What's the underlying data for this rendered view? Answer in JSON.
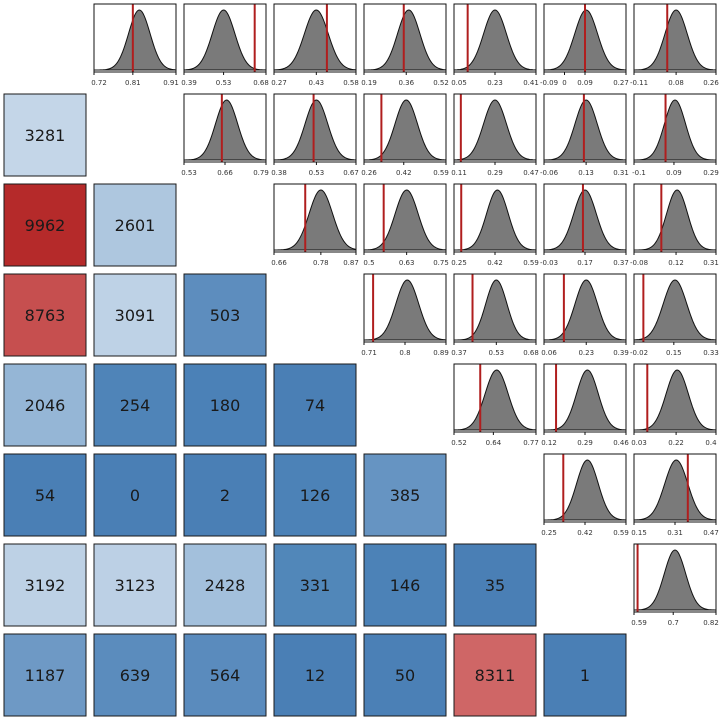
{
  "chart_data": {
    "type": "heatmap",
    "layout": "correlation-matrix: lower triangle = count tiles, upper triangle = sampling-distribution panels with observed value marker",
    "colors": {
      "low": "#4a7fb5",
      "mid": "#c4d6e8",
      "high": "#b52a2a",
      "density_fill": "#7a7a7a",
      "observed_line": "#b01e1e",
      "tile_border": "#1a1a1a"
    },
    "color_scale_note": "tile colour varies from blue (small counts) through light blue to red (large counts)",
    "lower_triangle": [
      {
        "row": 1,
        "values": [
          3281
        ]
      },
      {
        "row": 2,
        "values": [
          9962,
          2601
        ]
      },
      {
        "row": 3,
        "values": [
          8763,
          3091,
          503
        ]
      },
      {
        "row": 4,
        "values": [
          2046,
          254,
          180,
          74
        ]
      },
      {
        "row": 5,
        "values": [
          54,
          0,
          2,
          126,
          385
        ]
      },
      {
        "row": 6,
        "values": [
          3192,
          3123,
          2428,
          331,
          146,
          35
        ]
      },
      {
        "row": 7,
        "values": [
          1187,
          639,
          564,
          12,
          50,
          8311,
          1
        ]
      }
    ],
    "tile_colors": [
      [
        "#c4d6e8"
      ],
      [
        "#b52a2a",
        "#aec7df"
      ],
      [
        "#c64f4f",
        "#bed2e6",
        "#5d8dbe"
      ],
      [
        "#95b6d6",
        "#4f84b8",
        "#4b81b7",
        "#4a7fb5"
      ],
      [
        "#4a7fb5",
        "#4a7fb5",
        "#4a7fb5",
        "#4c82b7",
        "#6694c2"
      ],
      [
        "#bdd1e5",
        "#bcd0e5",
        "#a3c0dc",
        "#5187b9",
        "#4c82b7",
        "#4a7fb5"
      ],
      [
        "#6e99c5",
        "#5b8cbd",
        "#5a8bbd",
        "#4a7fb5",
        "#4b80b6",
        "#cf6666",
        "#4a7fb5"
      ]
    ],
    "density_panels": [
      [
        {
          "row": 0,
          "col": 1,
          "ticks": [
            "0.72",
            "0.81",
            "0.91"
          ],
          "mean": 0.825,
          "sd": 0.025,
          "xmin": 0.72,
          "xmax": 0.91,
          "observed": 0.81
        },
        {
          "row": 0,
          "col": 2,
          "ticks": [
            "0.39",
            "0.53",
            "0.68"
          ],
          "mean": 0.53,
          "sd": 0.04,
          "xmin": 0.39,
          "xmax": 0.68,
          "observed": 0.64
        },
        {
          "row": 0,
          "col": 3,
          "ticks": [
            "0.27",
            "0.43",
            "0.58"
          ],
          "mean": 0.43,
          "sd": 0.045,
          "xmin": 0.27,
          "xmax": 0.58,
          "observed": 0.47
        },
        {
          "row": 0,
          "col": 4,
          "ticks": [
            "0.19",
            "0.36",
            "0.52"
          ],
          "mean": 0.37,
          "sd": 0.045,
          "xmin": 0.19,
          "xmax": 0.52,
          "observed": 0.35
        },
        {
          "row": 0,
          "col": 5,
          "ticks": [
            "0.05",
            "0.23",
            "0.41"
          ],
          "mean": 0.23,
          "sd": 0.05,
          "xmin": 0.05,
          "xmax": 0.41,
          "observed": 0.11
        },
        {
          "row": 0,
          "col": 6,
          "ticks": [
            "-0.09",
            "0",
            "0.09",
            "0.27"
          ],
          "mean": 0.095,
          "sd": 0.05,
          "xmin": -0.09,
          "xmax": 0.27,
          "observed": 0.09
        },
        {
          "row": 0,
          "col": 7,
          "ticks": [
            "-0.11",
            "0.08",
            "0.26"
          ],
          "mean": 0.08,
          "sd": 0.05,
          "xmin": -0.11,
          "xmax": 0.26,
          "observed": 0.04
        }
      ],
      [
        {
          "row": 1,
          "col": 2,
          "ticks": [
            "0.53",
            "0.66",
            "0.79"
          ],
          "mean": 0.665,
          "sd": 0.035,
          "xmin": 0.53,
          "xmax": 0.79,
          "observed": 0.65
        },
        {
          "row": 1,
          "col": 3,
          "ticks": [
            "0.38",
            "0.53",
            "0.67"
          ],
          "mean": 0.53,
          "sd": 0.04,
          "xmin": 0.38,
          "xmax": 0.67,
          "observed": 0.52
        },
        {
          "row": 1,
          "col": 4,
          "ticks": [
            "0.26",
            "0.42",
            "0.59"
          ],
          "mean": 0.43,
          "sd": 0.045,
          "xmin": 0.26,
          "xmax": 0.59,
          "observed": 0.33
        },
        {
          "row": 1,
          "col": 5,
          "ticks": [
            "0.11",
            "0.29",
            "0.47"
          ],
          "mean": 0.29,
          "sd": 0.05,
          "xmin": 0.11,
          "xmax": 0.47,
          "observed": 0.14
        },
        {
          "row": 1,
          "col": 6,
          "ticks": [
            "-0.06",
            "0.13",
            "0.31"
          ],
          "mean": 0.13,
          "sd": 0.05,
          "xmin": -0.06,
          "xmax": 0.31,
          "observed": 0.12
        },
        {
          "row": 1,
          "col": 7,
          "ticks": [
            "-0.1",
            "0.09",
            "0.29"
          ],
          "mean": 0.095,
          "sd": 0.05,
          "xmin": -0.1,
          "xmax": 0.29,
          "observed": 0.05
        }
      ],
      [
        {
          "row": 2,
          "col": 3,
          "ticks": [
            "0.66",
            "0.78",
            "0.87"
          ],
          "mean": 0.78,
          "sd": 0.03,
          "xmin": 0.66,
          "xmax": 0.87,
          "observed": 0.74
        },
        {
          "row": 2,
          "col": 4,
          "ticks": [
            "0.5",
            "0.63",
            "0.75"
          ],
          "mean": 0.63,
          "sd": 0.035,
          "xmin": 0.5,
          "xmax": 0.75,
          "observed": 0.56
        },
        {
          "row": 2,
          "col": 5,
          "ticks": [
            "0.25",
            "0.42",
            "0.59"
          ],
          "mean": 0.43,
          "sd": 0.045,
          "xmin": 0.25,
          "xmax": 0.59,
          "observed": 0.28
        },
        {
          "row": 2,
          "col": 6,
          "ticks": [
            "-0.03",
            "0.17",
            "0.37"
          ],
          "mean": 0.17,
          "sd": 0.055,
          "xmin": -0.03,
          "xmax": 0.37,
          "observed": 0.16
        },
        {
          "row": 2,
          "col": 7,
          "ticks": [
            "-0.08",
            "0.12",
            "0.31"
          ],
          "mean": 0.125,
          "sd": 0.05,
          "xmin": -0.08,
          "xmax": 0.31,
          "observed": 0.05
        }
      ],
      [
        {
          "row": 3,
          "col": 4,
          "ticks": [
            "0.71",
            "0.8",
            "0.89"
          ],
          "mean": 0.805,
          "sd": 0.025,
          "xmin": 0.71,
          "xmax": 0.89,
          "observed": 0.73
        },
        {
          "row": 3,
          "col": 5,
          "ticks": [
            "0.37",
            "0.53",
            "0.68"
          ],
          "mean": 0.53,
          "sd": 0.04,
          "xmin": 0.37,
          "xmax": 0.68,
          "observed": 0.44
        },
        {
          "row": 3,
          "col": 6,
          "ticks": [
            "0.06",
            "0.23",
            "0.39"
          ],
          "mean": 0.23,
          "sd": 0.045,
          "xmin": 0.06,
          "xmax": 0.39,
          "observed": 0.14
        },
        {
          "row": 3,
          "col": 7,
          "ticks": [
            "-0.02",
            "0.15",
            "0.33"
          ],
          "mean": 0.155,
          "sd": 0.05,
          "xmin": -0.02,
          "xmax": 0.33,
          "observed": 0.02
        }
      ],
      [
        {
          "row": 4,
          "col": 5,
          "ticks": [
            "0.52",
            "0.64",
            "0.77"
          ],
          "mean": 0.65,
          "sd": 0.035,
          "xmin": 0.52,
          "xmax": 0.77,
          "observed": 0.6
        },
        {
          "row": 4,
          "col": 6,
          "ticks": [
            "0.12",
            "0.29",
            "0.46"
          ],
          "mean": 0.3,
          "sd": 0.045,
          "xmin": 0.12,
          "xmax": 0.46,
          "observed": 0.17
        },
        {
          "row": 4,
          "col": 7,
          "ticks": [
            "0.03",
            "0.22",
            "0.4"
          ],
          "mean": 0.225,
          "sd": 0.05,
          "xmin": 0.03,
          "xmax": 0.4,
          "observed": 0.09
        }
      ],
      [
        {
          "row": 5,
          "col": 6,
          "ticks": [
            "0.25",
            "0.42",
            "0.59"
          ],
          "mean": 0.43,
          "sd": 0.045,
          "xmin": 0.25,
          "xmax": 0.59,
          "observed": 0.33
        },
        {
          "row": 5,
          "col": 7,
          "ticks": [
            "0.15",
            "0.31",
            "0.47"
          ],
          "mean": 0.315,
          "sd": 0.045,
          "xmin": 0.15,
          "xmax": 0.47,
          "observed": 0.36
        }
      ],
      [
        {
          "row": 6,
          "col": 7,
          "ticks": [
            "0.59",
            "0.7",
            "0.82"
          ],
          "mean": 0.705,
          "sd": 0.03,
          "xmin": 0.59,
          "xmax": 0.82,
          "observed": 0.6
        }
      ]
    ]
  }
}
